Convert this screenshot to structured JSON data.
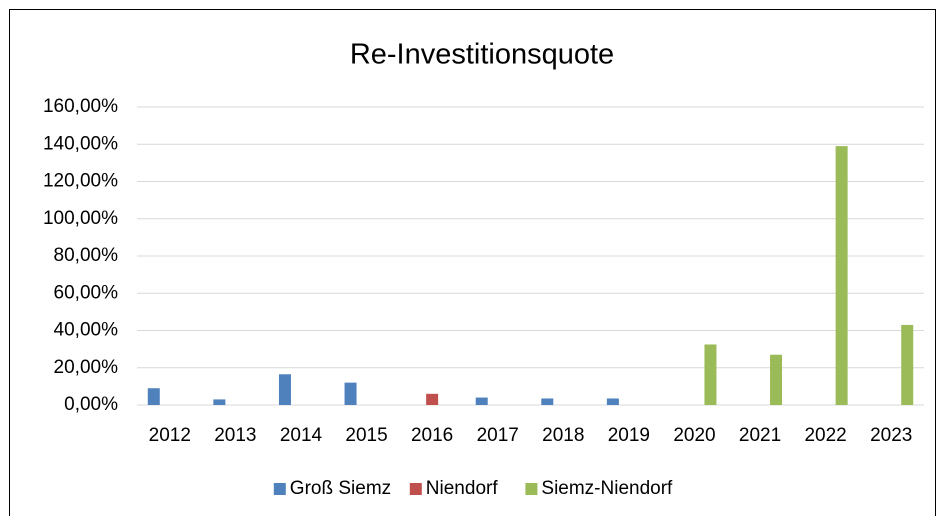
{
  "chart_data": {
    "type": "bar",
    "title": "Re-Investitionsquote",
    "categories": [
      "2012",
      "2013",
      "2014",
      "2015",
      "2016",
      "2017",
      "2018",
      "2019",
      "2020",
      "2021",
      "2022",
      "2023"
    ],
    "series": [
      {
        "name": "Groß Siemz",
        "color": "#4f81bd",
        "values": [
          9,
          3,
          16.5,
          12,
          null,
          4,
          3.5,
          3.5,
          null,
          null,
          null,
          null
        ]
      },
      {
        "name": "Niendorf",
        "color": "#c0504d",
        "values": [
          null,
          null,
          null,
          null,
          6,
          null,
          null,
          null,
          null,
          null,
          null,
          null
        ]
      },
      {
        "name": "Siemz-Niendorf",
        "color": "#9bbb59",
        "values": [
          null,
          null,
          null,
          null,
          null,
          null,
          null,
          null,
          32.5,
          27,
          139,
          43
        ]
      }
    ],
    "ylim": [
      0,
      160
    ],
    "yticks": [
      {
        "value": 0,
        "label": "0,00%"
      },
      {
        "value": 20,
        "label": "20,00%"
      },
      {
        "value": 40,
        "label": "40,00%"
      },
      {
        "value": 60,
        "label": "60,00%"
      },
      {
        "value": 80,
        "label": "80,00%"
      },
      {
        "value": 100,
        "label": "100,00%"
      },
      {
        "value": 120,
        "label": "120,00%"
      },
      {
        "value": 140,
        "label": "140,00%"
      },
      {
        "value": 160,
        "label": "160,00%"
      }
    ],
    "grid": true,
    "legend": "bottom"
  }
}
